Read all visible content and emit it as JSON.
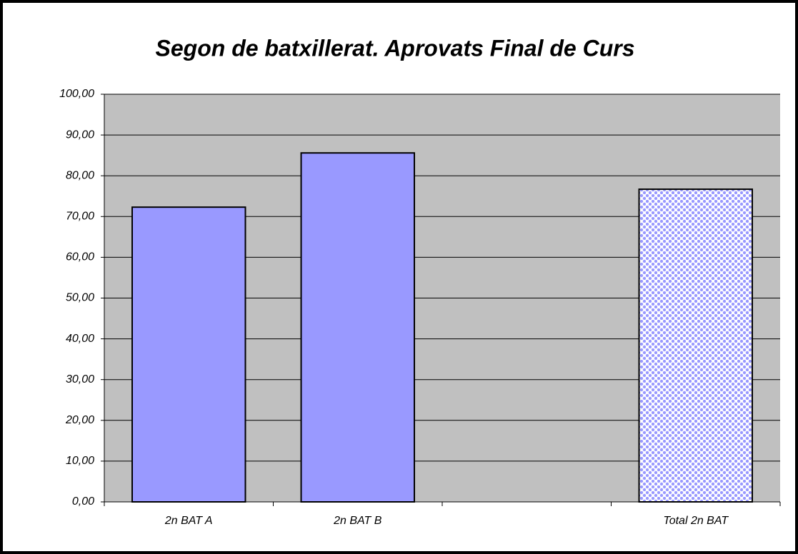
{
  "chart_data": {
    "type": "bar",
    "title": "Segon de batxillerat. Aprovats Final de Curs",
    "categories": [
      "2n BAT A",
      "2n BAT B",
      null,
      "Total 2n BAT"
    ],
    "values": [
      72.3,
      85.6,
      null,
      76.7
    ],
    "color": "#9999ff",
    "patterned": [
      false,
      false,
      false,
      true
    ],
    "ylim": [
      0,
      100
    ],
    "yticks": [
      {
        "value": 0,
        "label": "0,00"
      },
      {
        "value": 10,
        "label": "10,00"
      },
      {
        "value": 20,
        "label": "20,00"
      },
      {
        "value": 30,
        "label": "30,00"
      },
      {
        "value": 40,
        "label": "40,00"
      },
      {
        "value": 50,
        "label": "50,00"
      },
      {
        "value": 60,
        "label": "60,00"
      },
      {
        "value": 70,
        "label": "70,00"
      },
      {
        "value": 80,
        "label": "80,00"
      },
      {
        "value": 90,
        "label": "90,00"
      },
      {
        "value": 100,
        "label": "100,00"
      }
    ],
    "grid": true
  }
}
